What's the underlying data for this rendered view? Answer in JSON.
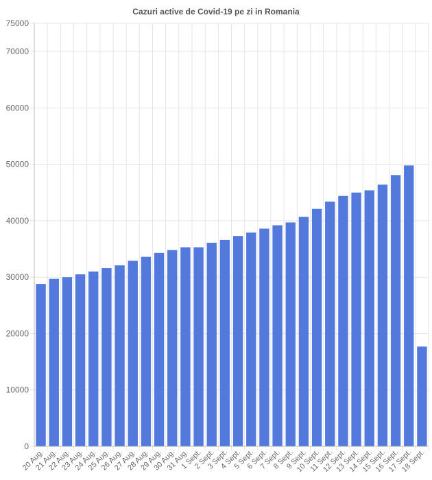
{
  "chart_data": {
    "type": "bar",
    "title": "Cazuri active de Covid-19 pe zi in Romania",
    "xlabel": "",
    "ylabel": "",
    "categories": [
      "20 Aug.",
      "21 Aug.",
      "22 Aug.",
      "23 Aug.",
      "24 Aug.",
      "25 Aug.",
      "26 Aug.",
      "27 Aug.",
      "28 Aug.",
      "29 Aug.",
      "30 Aug.",
      "31 Aug.",
      "1 Sept.",
      "2 Sept.",
      "3 Sept.",
      "4 Sept.",
      "5 Sept.",
      "6 Sept.",
      "7 Sept.",
      "8 Sept.",
      "9 Sept.",
      "10 Sept.",
      "11 Sept.",
      "12 Sept.",
      "13 Sept.",
      "14 Sept.",
      "15 Sept.",
      "16 Sept.",
      "17 Sept.",
      "18 Sept."
    ],
    "values": [
      28800,
      29700,
      30000,
      30500,
      31000,
      31600,
      32100,
      32900,
      33600,
      34300,
      34800,
      35300,
      35300,
      36100,
      36600,
      37300,
      37900,
      38600,
      39200,
      39700,
      40700,
      42100,
      43400,
      44400,
      45000,
      45400,
      46400,
      48100,
      49800,
      17700
    ],
    "ylim": [
      0,
      75000
    ],
    "yticks": [
      0,
      10000,
      20000,
      30000,
      40000,
      50000,
      60000,
      70000,
      75000
    ],
    "grid": true,
    "legend": "none",
    "bar_color": "#5479dd"
  }
}
